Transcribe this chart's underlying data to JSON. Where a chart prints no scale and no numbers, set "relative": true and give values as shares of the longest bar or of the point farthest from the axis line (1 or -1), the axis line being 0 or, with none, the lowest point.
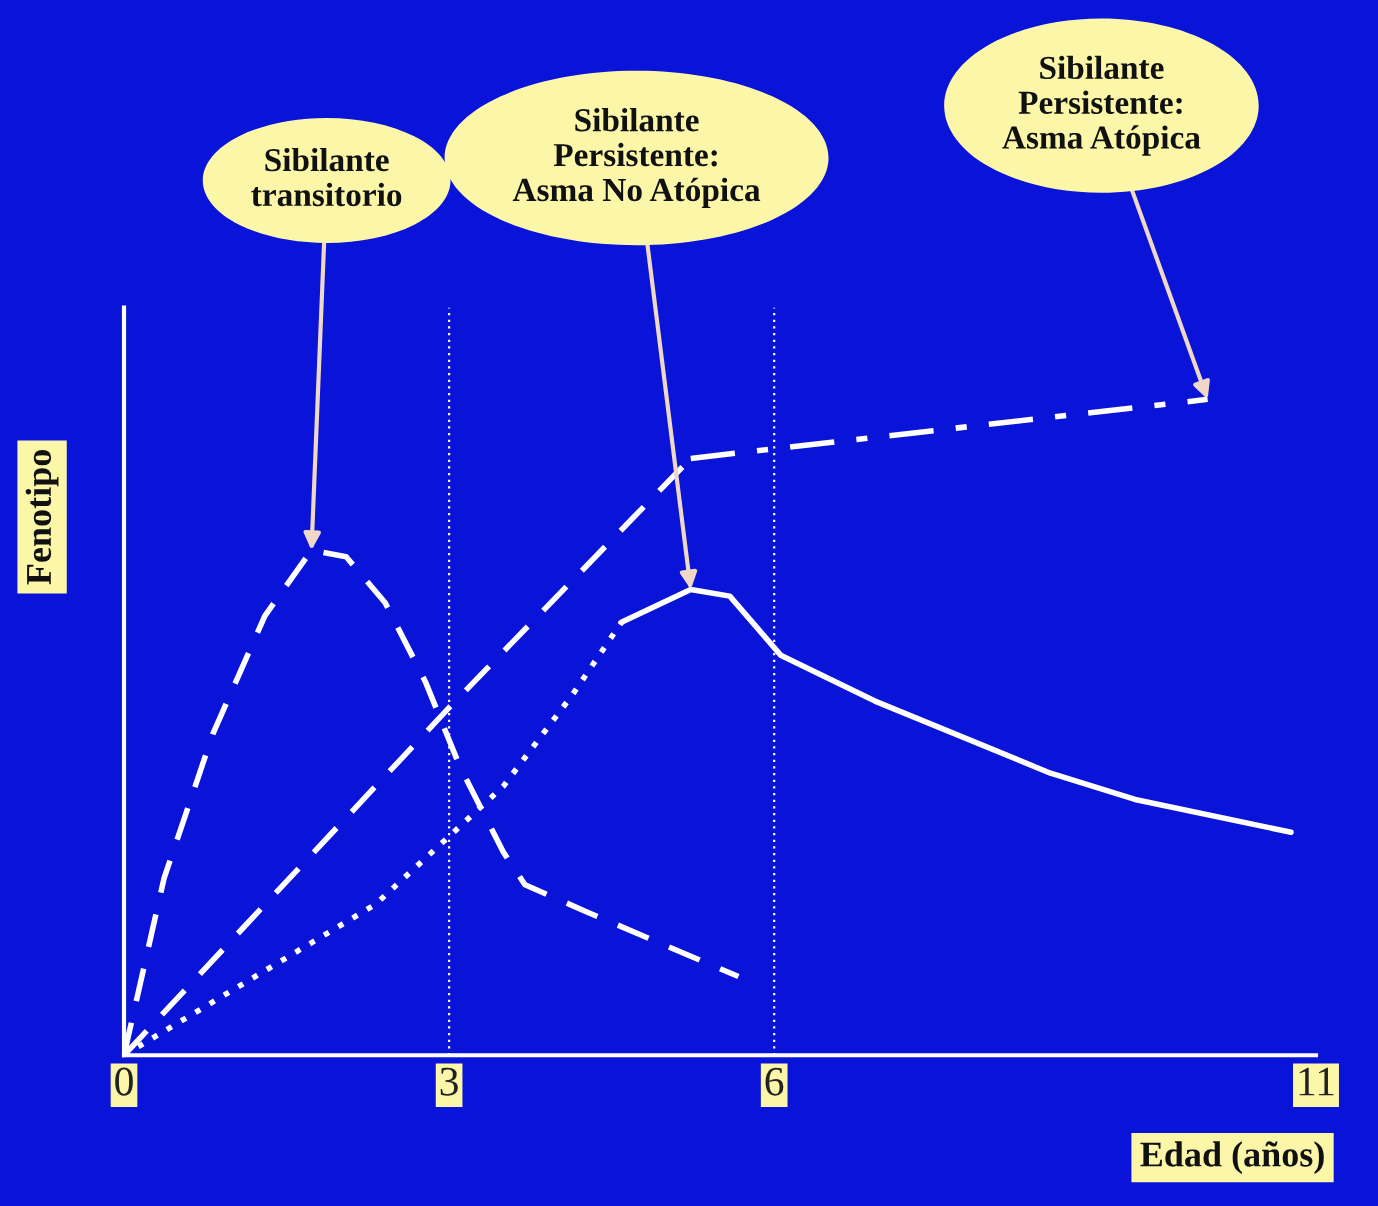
{
  "chart_data": {
    "type": "line",
    "relative": true,
    "xlabel": "Edad (años)",
    "ylabel": "Fenotipo",
    "xlim": [
      0,
      11
    ],
    "xticks": [
      0,
      3,
      6,
      11
    ],
    "tick_labels": "x",
    "grid": false,
    "marker": "none",
    "ref_lines": [
      {
        "axis": "x",
        "value": 3,
        "color": "#ffffff",
        "line_style": "dotted"
      },
      {
        "axis": "x",
        "value": 6,
        "color": "#ffffff",
        "line_style": "dotted"
      }
    ],
    "series": [
      {
        "color": "#ffffff",
        "line_style": "dashed",
        "x": [
          0,
          0.37,
          0.82,
          1.3,
          1.73,
          2.05,
          2.41,
          2.78,
          3.1,
          3.5,
          3.7,
          4.25,
          5.67
        ],
        "values": [
          0,
          0.27,
          0.49,
          0.67,
          0.77,
          0.76,
          0.69,
          0.57,
          0.44,
          0.31,
          0.26,
          0.22,
          0.12
        ]
      },
      {
        "color": "#ffffff",
        "line_style": "dashed",
        "x": [
          0,
          3,
          5.23
        ],
        "values": [
          0,
          0.53,
          0.91
        ]
      },
      {
        "color": "#ffffff",
        "line_style": "dashdot",
        "x": [
          5.23,
          10.0
        ],
        "values": [
          0.91,
          1.0
        ]
      },
      {
        "color": "#ffffff",
        "line_style": "dotted",
        "x": [
          0,
          2.32,
          3.5,
          4.14,
          4.59
        ],
        "values": [
          0,
          0.23,
          0.41,
          0.55,
          0.66
        ]
      },
      {
        "color": "#ffffff",
        "line_style": "solid",
        "x": [
          4.59,
          5.23,
          5.59,
          6.06,
          6.93,
          8.55,
          9.33,
          10.77
        ],
        "values": [
          0.66,
          0.71,
          0.7,
          0.61,
          0.54,
          0.43,
          0.39,
          0.34
        ]
      }
    ],
    "annotations": [
      {
        "text": "Sibilante\ntransitorio",
        "x": 1.73,
        "y": 0.77
      },
      {
        "text": "Sibilante\nPersistente:\nAsma No Atópica",
        "x": 5.23,
        "y": 0.71
      },
      {
        "text": "Sibilante\nPersistente:\nAsma Atópica",
        "x": 10.0,
        "y": 1.0
      }
    ]
  }
}
